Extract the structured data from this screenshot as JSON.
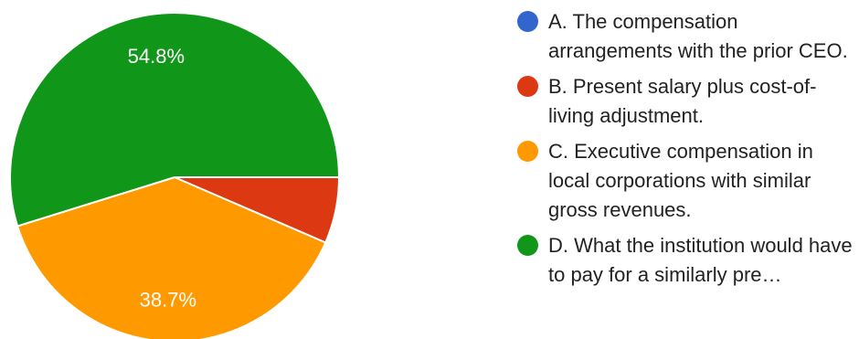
{
  "chart_data": {
    "type": "pie",
    "title": "",
    "slices": [
      {
        "label": "A. The compensation arrangements with the prior CEO.",
        "value": 0.0,
        "color": "#3366cc",
        "display_label": ""
      },
      {
        "label": "B. Present salary plus cost-of-living adjustment.",
        "value": 6.5,
        "color": "#dc3912",
        "display_label": ""
      },
      {
        "label": "C. Executive compensation in local corporations with similar gross revenues.",
        "value": 38.7,
        "color": "#ff9900",
        "display_label": "38.7%"
      },
      {
        "label": "D. What the institution would have to pay for a similarly pre…",
        "value": 54.8,
        "color": "#109618",
        "display_label": "54.8%"
      }
    ],
    "legend": {
      "position": "right"
    }
  }
}
